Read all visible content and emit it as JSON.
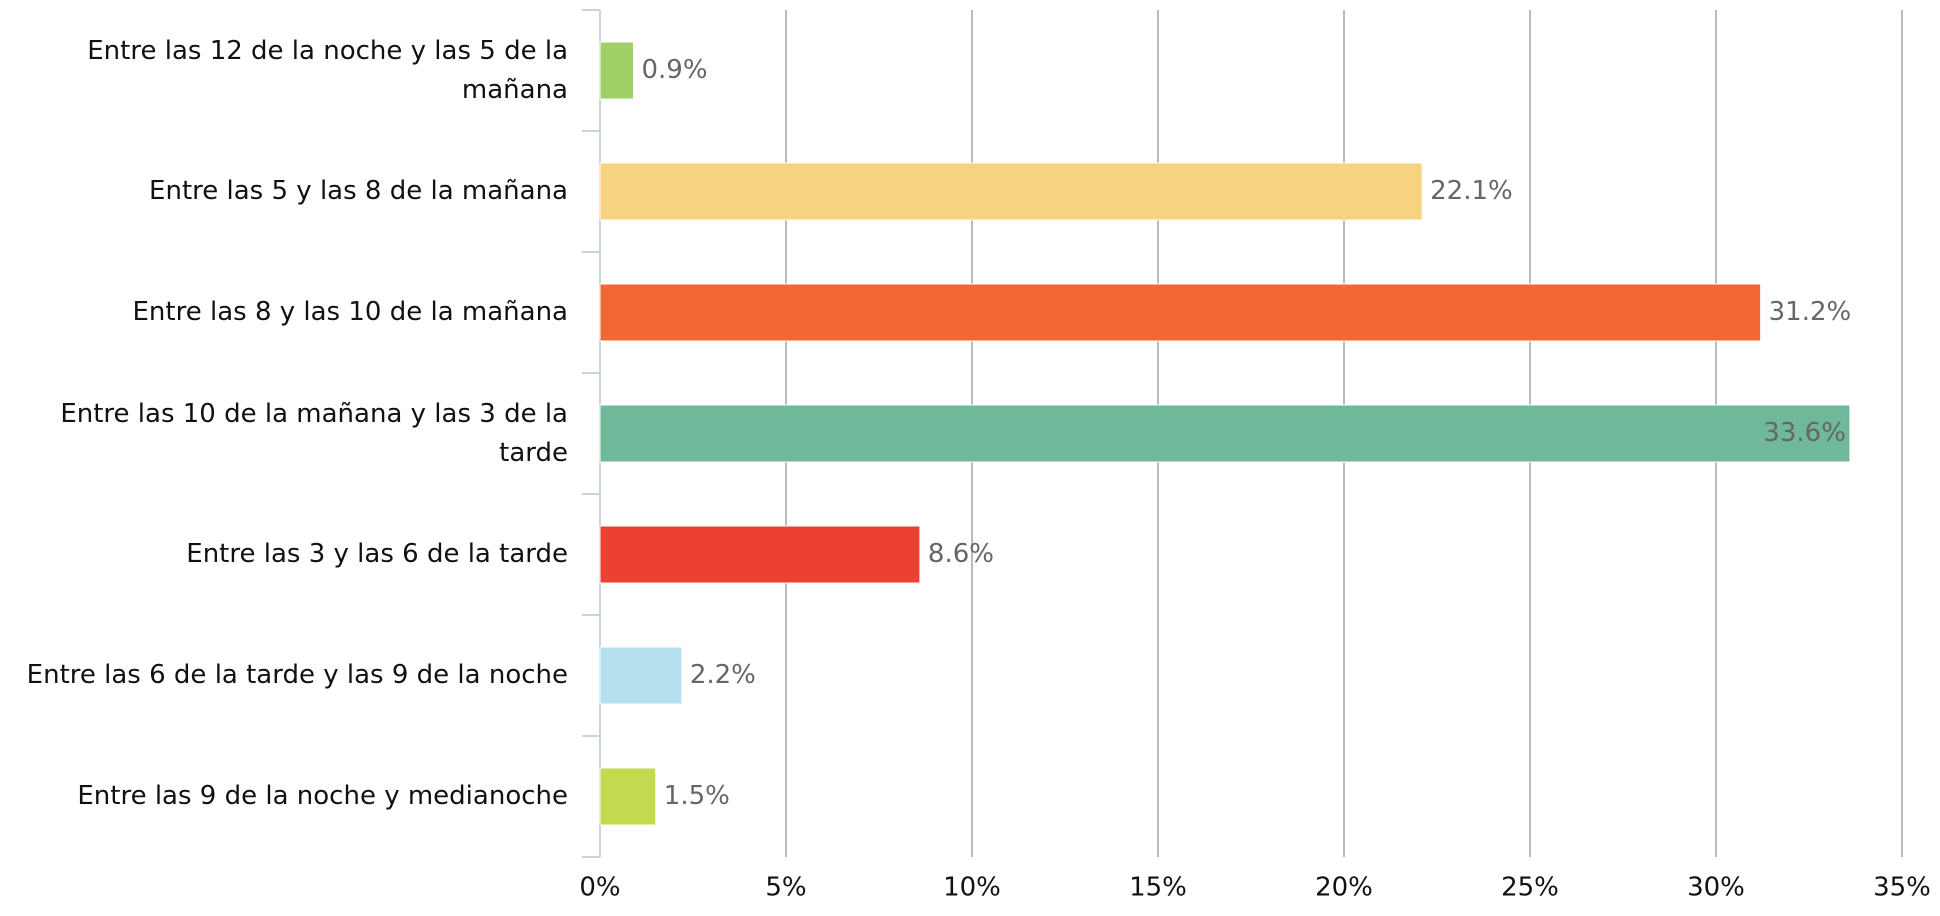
{
  "chart_data": {
    "type": "bar",
    "orientation": "horizontal",
    "categories": [
      "Entre las 12 de la noche y las 5 de la mañana",
      "Entre las 5 y las 8 de la mañana",
      "Entre las 8 y las 10 de la mañana",
      "Entre las 10 de la mañana y las 3 de la tarde",
      "Entre las 3 y las 6 de la tarde",
      "Entre las 6 de la tarde y las 9 de la noche",
      "Entre las 9 de la noche y medianoche"
    ],
    "values": [
      0.9,
      22.1,
      31.2,
      33.6,
      8.6,
      2.2,
      1.5
    ],
    "value_labels": [
      "0.9%",
      "22.1%",
      "31.2%",
      "33.6%",
      "8.6%",
      "2.2%",
      "1.5%"
    ],
    "colors": [
      "#a0cf67",
      "#f7d281",
      "#f26835",
      "#6fb89a",
      "#ee3f34",
      "#b3e0ec",
      "#c5d94f"
    ],
    "xlim": [
      0,
      35
    ],
    "xticks": [
      {
        "value": 0,
        "label": "0%"
      },
      {
        "value": 5,
        "label": "5%"
      },
      {
        "value": 10,
        "label": "10%"
      },
      {
        "value": 15,
        "label": "15%"
      },
      {
        "value": 20,
        "label": "20%"
      },
      {
        "value": 25,
        "label": "25%"
      },
      {
        "value": 30,
        "label": "30%"
      },
      {
        "value": 35,
        "label": "35%"
      }
    ],
    "grid": true
  }
}
